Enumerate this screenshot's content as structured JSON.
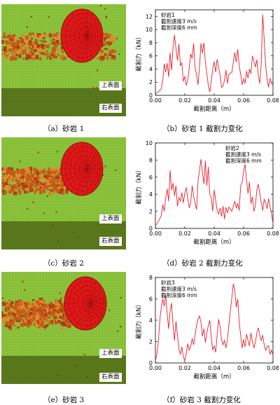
{
  "panels": [
    {
      "sim_caption": "（a）砂岩 1",
      "plot_caption": "（b）砂岩 1 截割力变化",
      "sim_labels": {
        "top": "上表面",
        "right": "右表面"
      },
      "legend": [
        "砂岩1",
        "截割速度3 m/s",
        "截割深度6 mm"
      ],
      "chart_data": {
        "type": "line",
        "xlabel": "截割距离（m）",
        "ylabel": "截割力（kN）",
        "xlim": [
          0,
          0.08
        ],
        "ylim": [
          0,
          13
        ],
        "xticks": [
          "0.00",
          "0.02",
          "0.04",
          "0.06",
          "0.08"
        ],
        "yticks": [
          "0",
          "2",
          "4",
          "6",
          "8",
          "10",
          "12"
        ],
        "series": [
          {
            "color": "#e8202a",
            "x": [
              0,
              0.002,
              0.004,
              0.005,
              0.006,
              0.007,
              0.008,
              0.009,
              0.01,
              0.011,
              0.012,
              0.013,
              0.014,
              0.015,
              0.016,
              0.017,
              0.018,
              0.019,
              0.02,
              0.021,
              0.022,
              0.023,
              0.024,
              0.025,
              0.026,
              0.027,
              0.028,
              0.029,
              0.03,
              0.031,
              0.032,
              0.033,
              0.034,
              0.035,
              0.036,
              0.037,
              0.038,
              0.039,
              0.04,
              0.041,
              0.042,
              0.043,
              0.044,
              0.045,
              0.046,
              0.047,
              0.048,
              0.049,
              0.05,
              0.052,
              0.054,
              0.055,
              0.056,
              0.057,
              0.058,
              0.059,
              0.06,
              0.061,
              0.062,
              0.063,
              0.064,
              0.065,
              0.066,
              0.067,
              0.068,
              0.069,
              0.07,
              0.071,
              0.072,
              0.073,
              0.074,
              0.075,
              0.076,
              0.077,
              0.078,
              0.079,
              0.08
            ],
            "y": [
              0.3,
              0.5,
              1.0,
              2.2,
              4.8,
              3.5,
              4.9,
              2.8,
              6.5,
              3.8,
              7.2,
              9.2,
              7.1,
              5.3,
              7.8,
              4.5,
              5.0,
              2.1,
              2.9,
              1.5,
              2.3,
              4.2,
              6.3,
              5.6,
              7.9,
              4.1,
              3.2,
              1.6,
              4.2,
              7.9,
              6.4,
              8.0,
              5.0,
              3.3,
              1.5,
              0.5,
              2.1,
              4.0,
              5.1,
              3.5,
              5.5,
              4.2,
              3.1,
              1.2,
              1.4,
              2.3,
              3.8,
              1.8,
              3.2,
              3.5,
              6.5,
              5.0,
              7.0,
              4.5,
              3.2,
              1.6,
              2.5,
              1.8,
              3.7,
              2.6,
              4.0,
              3.3,
              6.0,
              5.2,
              4.3,
              5.4,
              3.0,
              1.8,
              4.8,
              12.3,
              8.5,
              4.5,
              2.5,
              1.2,
              2.6,
              1.8,
              1.5
            ]
          }
        ]
      }
    },
    {
      "sim_caption": "（c）砂岩 2",
      "plot_caption": "（d）砂岩 2 截割力变化",
      "sim_labels": {
        "top": "上表面",
        "right": "右表面"
      },
      "legend": [
        "砂岩2",
        "截割速度3 m/s",
        "截割深度6 mm"
      ],
      "chart_data": {
        "type": "line",
        "xlabel": "截割距离（m）",
        "ylabel": "截割力（kN）",
        "xlim": [
          0,
          0.08
        ],
        "ylim": [
          0,
          10
        ],
        "xticks": [
          "0.00",
          "0.02",
          "0.04",
          "0.06",
          "0.08"
        ],
        "yticks": [
          "0",
          "2",
          "4",
          "6",
          "8",
          "10"
        ],
        "series": [
          {
            "color": "#e8202a",
            "x": [
              0,
              0.002,
              0.004,
              0.005,
              0.006,
              0.007,
              0.008,
              0.009,
              0.01,
              0.011,
              0.012,
              0.013,
              0.014,
              0.015,
              0.016,
              0.017,
              0.018,
              0.019,
              0.02,
              0.021,
              0.022,
              0.023,
              0.024,
              0.025,
              0.026,
              0.027,
              0.028,
              0.029,
              0.03,
              0.031,
              0.032,
              0.033,
              0.034,
              0.035,
              0.036,
              0.037,
              0.038,
              0.039,
              0.04,
              0.041,
              0.042,
              0.043,
              0.044,
              0.045,
              0.046,
              0.047,
              0.048,
              0.049,
              0.05,
              0.052,
              0.054,
              0.055,
              0.056,
              0.057,
              0.058,
              0.059,
              0.06,
              0.061,
              0.062,
              0.063,
              0.064,
              0.065,
              0.066,
              0.067,
              0.068,
              0.069,
              0.07,
              0.071,
              0.072,
              0.073,
              0.074,
              0.075,
              0.076,
              0.077,
              0.078,
              0.079,
              0.08
            ],
            "y": [
              0.3,
              0.8,
              1.5,
              2.8,
              2.0,
              3.5,
              4.6,
              3.2,
              6.8,
              4.5,
              5.3,
              3.8,
              5.0,
              2.6,
              3.6,
              3.2,
              4.2,
              3.0,
              4.1,
              4.8,
              3.5,
              2.4,
              3.0,
              5.0,
              3.8,
              3.0,
              2.2,
              5.5,
              6.8,
              8.1,
              6.5,
              5.2,
              7.9,
              5.0,
              7.2,
              4.0,
              3.6,
              2.0,
              4.5,
              3.3,
              2.1,
              1.7,
              2.4,
              1.4,
              2.6,
              1.1,
              2.5,
              1.8,
              2.5,
              2.0,
              3.2,
              2.4,
              2.9,
              2.1,
              5.0,
              5.4,
              6.7,
              7.5,
              5.6,
              4.1,
              5.4,
              2.9,
              3.7,
              2.0,
              2.6,
              4.5,
              5.2,
              4.1,
              3.0,
              2.1,
              3.4,
              3.0,
              2.3,
              3.5,
              2.5,
              1.7,
              0.6
            ]
          }
        ]
      }
    },
    {
      "sim_caption": "（e）砂岩 3",
      "plot_caption": "（f）砂岩 3 截割力变化",
      "sim_labels": {
        "top": "上表面",
        "right": "右表面"
      },
      "legend": [
        "砂岩3",
        "截割速度3 m/s",
        "截割深度6 mm"
      ],
      "chart_data": {
        "type": "line",
        "xlabel": "截割距离（m）",
        "ylabel": "截割力（kN）",
        "xlim": [
          0,
          0.08
        ],
        "ylim": [
          0,
          8
        ],
        "xticks": [
          "0.00",
          "0.02",
          "0.04",
          "0.06",
          "0.08"
        ],
        "yticks": [
          "0",
          "2",
          "4",
          "6",
          "8"
        ],
        "series": [
          {
            "color": "#e8202a",
            "x": [
              0,
              0.001,
              0.002,
              0.003,
              0.004,
              0.005,
              0.006,
              0.007,
              0.008,
              0.009,
              0.01,
              0.011,
              0.012,
              0.013,
              0.014,
              0.015,
              0.016,
              0.017,
              0.018,
              0.019,
              0.02,
              0.021,
              0.022,
              0.023,
              0.024,
              0.025,
              0.026,
              0.027,
              0.028,
              0.029,
              0.03,
              0.031,
              0.032,
              0.033,
              0.034,
              0.035,
              0.036,
              0.037,
              0.038,
              0.039,
              0.04,
              0.041,
              0.042,
              0.043,
              0.044,
              0.045,
              0.046,
              0.047,
              0.048,
              0.049,
              0.05,
              0.051,
              0.052,
              0.053,
              0.054,
              0.055,
              0.056,
              0.057,
              0.058,
              0.059,
              0.06,
              0.061,
              0.062,
              0.063,
              0.064,
              0.065,
              0.066,
              0.067,
              0.068,
              0.069,
              0.07,
              0.071,
              0.072,
              0.073,
              0.074,
              0.075,
              0.076,
              0.077,
              0.078,
              0.079,
              0.08
            ],
            "y": [
              0.2,
              0.8,
              2.0,
              4.0,
              5.2,
              6.0,
              5.3,
              6.4,
              4.6,
              3.2,
              4.8,
              5.6,
              3.5,
              2.1,
              3.9,
              2.6,
              1.3,
              0.8,
              1.5,
              0.6,
              0.2,
              0.9,
              1.8,
              1.2,
              1.5,
              2.3,
              1.7,
              2.6,
              3.5,
              4.1,
              4.4,
              3.8,
              2.5,
              3.2,
              1.9,
              2.8,
              3.5,
              4.0,
              2.4,
              1.2,
              1.6,
              1.0,
              2.6,
              4.1,
              3.4,
              2.2,
              1.7,
              2.1,
              1.4,
              2.2,
              3.6,
              4.9,
              6.1,
              7.4,
              6.8,
              5.2,
              6.0,
              3.8,
              2.6,
              1.4,
              2.2,
              1.5,
              2.7,
              2.1,
              1.6,
              2.8,
              2.0,
              1.4,
              1.9,
              2.8,
              3.3,
              2.6,
              2.1,
              2.6,
              1.7,
              1.2,
              1.5,
              1.6,
              0.8,
              1.2,
              0.7
            ]
          }
        ]
      }
    }
  ]
}
